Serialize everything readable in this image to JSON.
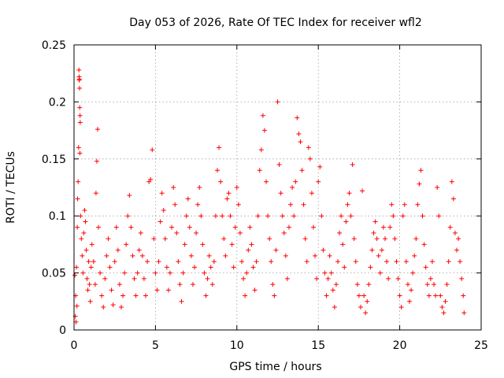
{
  "chart_data": {
    "type": "scatter",
    "title": "Day 053 of 2026, Rate Of TEC Index for receiver wfl2",
    "xlabel": "GPS time / hours",
    "ylabel": "ROTI / TECUs",
    "xlim": [
      0,
      25
    ],
    "ylim": [
      0,
      0.25
    ],
    "x_ticks": [
      "0",
      "5",
      "10",
      "15",
      "20",
      "25"
    ],
    "y_ticks": [
      "0",
      "0.05",
      "0.1",
      "0.15",
      "0.2",
      "0.25"
    ],
    "grid": true,
    "marker": "plus",
    "color": "#ff0000",
    "series": [
      {
        "values_note": "",
        "points": [
          [
            0.05,
            0.048
          ],
          [
            0.08,
            0.012
          ],
          [
            0.1,
            0.03
          ],
          [
            0.12,
            0.007
          ],
          [
            0.15,
            0.055
          ],
          [
            0.18,
            0.021
          ],
          [
            0.2,
            0.09
          ],
          [
            0.22,
            0.115
          ],
          [
            0.25,
            0.13
          ],
          [
            0.28,
            0.16
          ],
          [
            0.3,
            0.228
          ],
          [
            0.31,
            0.222
          ],
          [
            0.32,
            0.219
          ],
          [
            0.33,
            0.22
          ],
          [
            0.34,
            0.212
          ],
          [
            0.35,
            0.195
          ],
          [
            0.37,
            0.188
          ],
          [
            0.38,
            0.182
          ],
          [
            0.36,
            0.155
          ],
          [
            0.4,
            0.1
          ],
          [
            0.45,
            0.08
          ],
          [
            0.5,
            0.065
          ],
          [
            0.55,
            0.05
          ],
          [
            0.6,
            0.085
          ],
          [
            0.65,
            0.105
          ],
          [
            0.7,
            0.095
          ],
          [
            0.75,
            0.07
          ],
          [
            0.8,
            0.045
          ],
          [
            0.85,
            0.035
          ],
          [
            0.9,
            0.06
          ],
          [
            0.95,
            0.04
          ],
          [
            1.0,
            0.025
          ],
          [
            1.05,
            0.055
          ],
          [
            1.1,
            0.075
          ],
          [
            1.2,
            0.06
          ],
          [
            1.3,
            0.04
          ],
          [
            1.35,
            0.12
          ],
          [
            1.4,
            0.148
          ],
          [
            1.45,
            0.176
          ],
          [
            1.5,
            0.09
          ],
          [
            1.6,
            0.05
          ],
          [
            1.7,
            0.03
          ],
          [
            1.8,
            0.02
          ],
          [
            1.9,
            0.045
          ],
          [
            2.0,
            0.065
          ],
          [
            2.1,
            0.08
          ],
          [
            2.2,
            0.055
          ],
          [
            2.3,
            0.035
          ],
          [
            2.4,
            0.022
          ],
          [
            2.5,
            0.06
          ],
          [
            2.6,
            0.09
          ],
          [
            2.7,
            0.07
          ],
          [
            2.8,
            0.04
          ],
          [
            2.9,
            0.02
          ],
          [
            3.0,
            0.03
          ],
          [
            3.1,
            0.05
          ],
          [
            3.2,
            0.075
          ],
          [
            3.3,
            0.1
          ],
          [
            3.4,
            0.118
          ],
          [
            3.5,
            0.09
          ],
          [
            3.6,
            0.065
          ],
          [
            3.7,
            0.045
          ],
          [
            3.8,
            0.03
          ],
          [
            3.9,
            0.05
          ],
          [
            4.0,
            0.07
          ],
          [
            4.1,
            0.085
          ],
          [
            4.2,
            0.065
          ],
          [
            4.3,
            0.045
          ],
          [
            4.4,
            0.03
          ],
          [
            4.5,
            0.06
          ],
          [
            4.6,
            0.13
          ],
          [
            4.7,
            0.132
          ],
          [
            4.8,
            0.158
          ],
          [
            4.9,
            0.08
          ],
          [
            5.0,
            0.05
          ],
          [
            5.1,
            0.035
          ],
          [
            5.2,
            0.06
          ],
          [
            5.3,
            0.095
          ],
          [
            5.4,
            0.12
          ],
          [
            5.5,
            0.105
          ],
          [
            5.6,
            0.08
          ],
          [
            5.7,
            0.055
          ],
          [
            5.8,
            0.035
          ],
          [
            5.9,
            0.05
          ],
          [
            6.0,
            0.09
          ],
          [
            6.1,
            0.125
          ],
          [
            6.2,
            0.11
          ],
          [
            6.3,
            0.085
          ],
          [
            6.4,
            0.06
          ],
          [
            6.5,
            0.04
          ],
          [
            6.6,
            0.025
          ],
          [
            6.7,
            0.05
          ],
          [
            6.8,
            0.075
          ],
          [
            6.9,
            0.1
          ],
          [
            7.0,
            0.115
          ],
          [
            7.1,
            0.09
          ],
          [
            7.2,
            0.065
          ],
          [
            7.3,
            0.04
          ],
          [
            7.4,
            0.055
          ],
          [
            7.5,
            0.085
          ],
          [
            7.6,
            0.11
          ],
          [
            7.7,
            0.125
          ],
          [
            7.8,
            0.1
          ],
          [
            7.9,
            0.075
          ],
          [
            8.0,
            0.05
          ],
          [
            8.1,
            0.03
          ],
          [
            8.2,
            0.045
          ],
          [
            8.3,
            0.065
          ],
          [
            8.4,
            0.055
          ],
          [
            8.5,
            0.04
          ],
          [
            8.6,
            0.06
          ],
          [
            8.7,
            0.1
          ],
          [
            8.8,
            0.14
          ],
          [
            8.9,
            0.16
          ],
          [
            9.0,
            0.13
          ],
          [
            9.1,
            0.1
          ],
          [
            9.2,
            0.08
          ],
          [
            9.3,
            0.065
          ],
          [
            9.4,
            0.115
          ],
          [
            9.5,
            0.12
          ],
          [
            9.6,
            0.1
          ],
          [
            9.7,
            0.075
          ],
          [
            9.8,
            0.055
          ],
          [
            9.9,
            0.09
          ],
          [
            10.0,
            0.125
          ],
          [
            10.1,
            0.11
          ],
          [
            10.2,
            0.085
          ],
          [
            10.3,
            0.06
          ],
          [
            10.4,
            0.045
          ],
          [
            10.5,
            0.03
          ],
          [
            10.6,
            0.05
          ],
          [
            10.7,
            0.07
          ],
          [
            10.8,
            0.09
          ],
          [
            10.9,
            0.075
          ],
          [
            11.0,
            0.055
          ],
          [
            11.1,
            0.035
          ],
          [
            11.2,
            0.06
          ],
          [
            11.3,
            0.1
          ],
          [
            11.4,
            0.14
          ],
          [
            11.5,
            0.158
          ],
          [
            11.6,
            0.188
          ],
          [
            11.7,
            0.175
          ],
          [
            11.8,
            0.13
          ],
          [
            11.9,
            0.1
          ],
          [
            12.0,
            0.08
          ],
          [
            12.1,
            0.06
          ],
          [
            12.2,
            0.04
          ],
          [
            12.3,
            0.03
          ],
          [
            12.4,
            0.07
          ],
          [
            12.5,
            0.2
          ],
          [
            12.6,
            0.145
          ],
          [
            12.7,
            0.12
          ],
          [
            12.8,
            0.1
          ],
          [
            12.9,
            0.085
          ],
          [
            13.0,
            0.065
          ],
          [
            13.1,
            0.045
          ],
          [
            13.2,
            0.09
          ],
          [
            13.3,
            0.11
          ],
          [
            13.4,
            0.125
          ],
          [
            13.5,
            0.1
          ],
          [
            13.6,
            0.13
          ],
          [
            13.7,
            0.186
          ],
          [
            13.8,
            0.172
          ],
          [
            13.9,
            0.165
          ],
          [
            14.0,
            0.14
          ],
          [
            14.1,
            0.11
          ],
          [
            14.2,
            0.08
          ],
          [
            14.3,
            0.06
          ],
          [
            14.4,
            0.16
          ],
          [
            14.5,
            0.15
          ],
          [
            14.6,
            0.12
          ],
          [
            14.7,
            0.09
          ],
          [
            14.8,
            0.065
          ],
          [
            14.9,
            0.045
          ],
          [
            15.0,
            0.13
          ],
          [
            15.1,
            0.143
          ],
          [
            15.2,
            0.1
          ],
          [
            15.3,
            0.07
          ],
          [
            15.4,
            0.05
          ],
          [
            15.5,
            0.03
          ],
          [
            15.6,
            0.045
          ],
          [
            15.7,
            0.065
          ],
          [
            15.8,
            0.05
          ],
          [
            15.9,
            0.035
          ],
          [
            16.0,
            0.02
          ],
          [
            16.1,
            0.04
          ],
          [
            16.2,
            0.06
          ],
          [
            16.3,
            0.085
          ],
          [
            16.4,
            0.1
          ],
          [
            16.5,
            0.075
          ],
          [
            16.6,
            0.055
          ],
          [
            16.7,
            0.095
          ],
          [
            16.8,
            0.11
          ],
          [
            16.9,
            0.12
          ],
          [
            17.0,
            0.1
          ],
          [
            17.1,
            0.145
          ],
          [
            17.2,
            0.08
          ],
          [
            17.3,
            0.06
          ],
          [
            17.4,
            0.04
          ],
          [
            17.5,
            0.03
          ],
          [
            17.6,
            0.02
          ],
          [
            17.7,
            0.122
          ],
          [
            17.8,
            0.03
          ],
          [
            17.9,
            0.015
          ],
          [
            18.0,
            0.025
          ],
          [
            18.1,
            0.04
          ],
          [
            18.2,
            0.055
          ],
          [
            18.3,
            0.07
          ],
          [
            18.4,
            0.085
          ],
          [
            18.5,
            0.095
          ],
          [
            18.6,
            0.08
          ],
          [
            18.7,
            0.065
          ],
          [
            18.8,
            0.05
          ],
          [
            18.9,
            0.07
          ],
          [
            19.0,
            0.09
          ],
          [
            19.1,
            0.08
          ],
          [
            19.2,
            0.06
          ],
          [
            19.3,
            0.045
          ],
          [
            19.4,
            0.09
          ],
          [
            19.5,
            0.11
          ],
          [
            19.6,
            0.1
          ],
          [
            19.7,
            0.08
          ],
          [
            19.8,
            0.06
          ],
          [
            19.9,
            0.045
          ],
          [
            20.0,
            0.03
          ],
          [
            20.1,
            0.02
          ],
          [
            20.2,
            0.1
          ],
          [
            20.3,
            0.11
          ],
          [
            20.4,
            0.06
          ],
          [
            20.5,
            0.04
          ],
          [
            20.6,
            0.025
          ],
          [
            20.7,
            0.035
          ],
          [
            20.8,
            0.05
          ],
          [
            20.9,
            0.065
          ],
          [
            21.0,
            0.08
          ],
          [
            21.1,
            0.11
          ],
          [
            21.2,
            0.128
          ],
          [
            21.3,
            0.14
          ],
          [
            21.4,
            0.1
          ],
          [
            21.5,
            0.075
          ],
          [
            21.6,
            0.055
          ],
          [
            21.7,
            0.04
          ],
          [
            21.8,
            0.03
          ],
          [
            21.9,
            0.045
          ],
          [
            22.0,
            0.06
          ],
          [
            22.1,
            0.04
          ],
          [
            22.2,
            0.03
          ],
          [
            22.3,
            0.125
          ],
          [
            22.4,
            0.1
          ],
          [
            22.5,
            0.03
          ],
          [
            22.6,
            0.02
          ],
          [
            22.7,
            0.015
          ],
          [
            22.8,
            0.025
          ],
          [
            22.9,
            0.04
          ],
          [
            23.0,
            0.06
          ],
          [
            23.1,
            0.09
          ],
          [
            23.2,
            0.13
          ],
          [
            23.3,
            0.115
          ],
          [
            23.4,
            0.085
          ],
          [
            23.5,
            0.07
          ],
          [
            23.6,
            0.08
          ],
          [
            23.7,
            0.06
          ],
          [
            23.8,
            0.045
          ],
          [
            23.9,
            0.03
          ],
          [
            23.95,
            0.015
          ]
        ]
      }
    ]
  }
}
